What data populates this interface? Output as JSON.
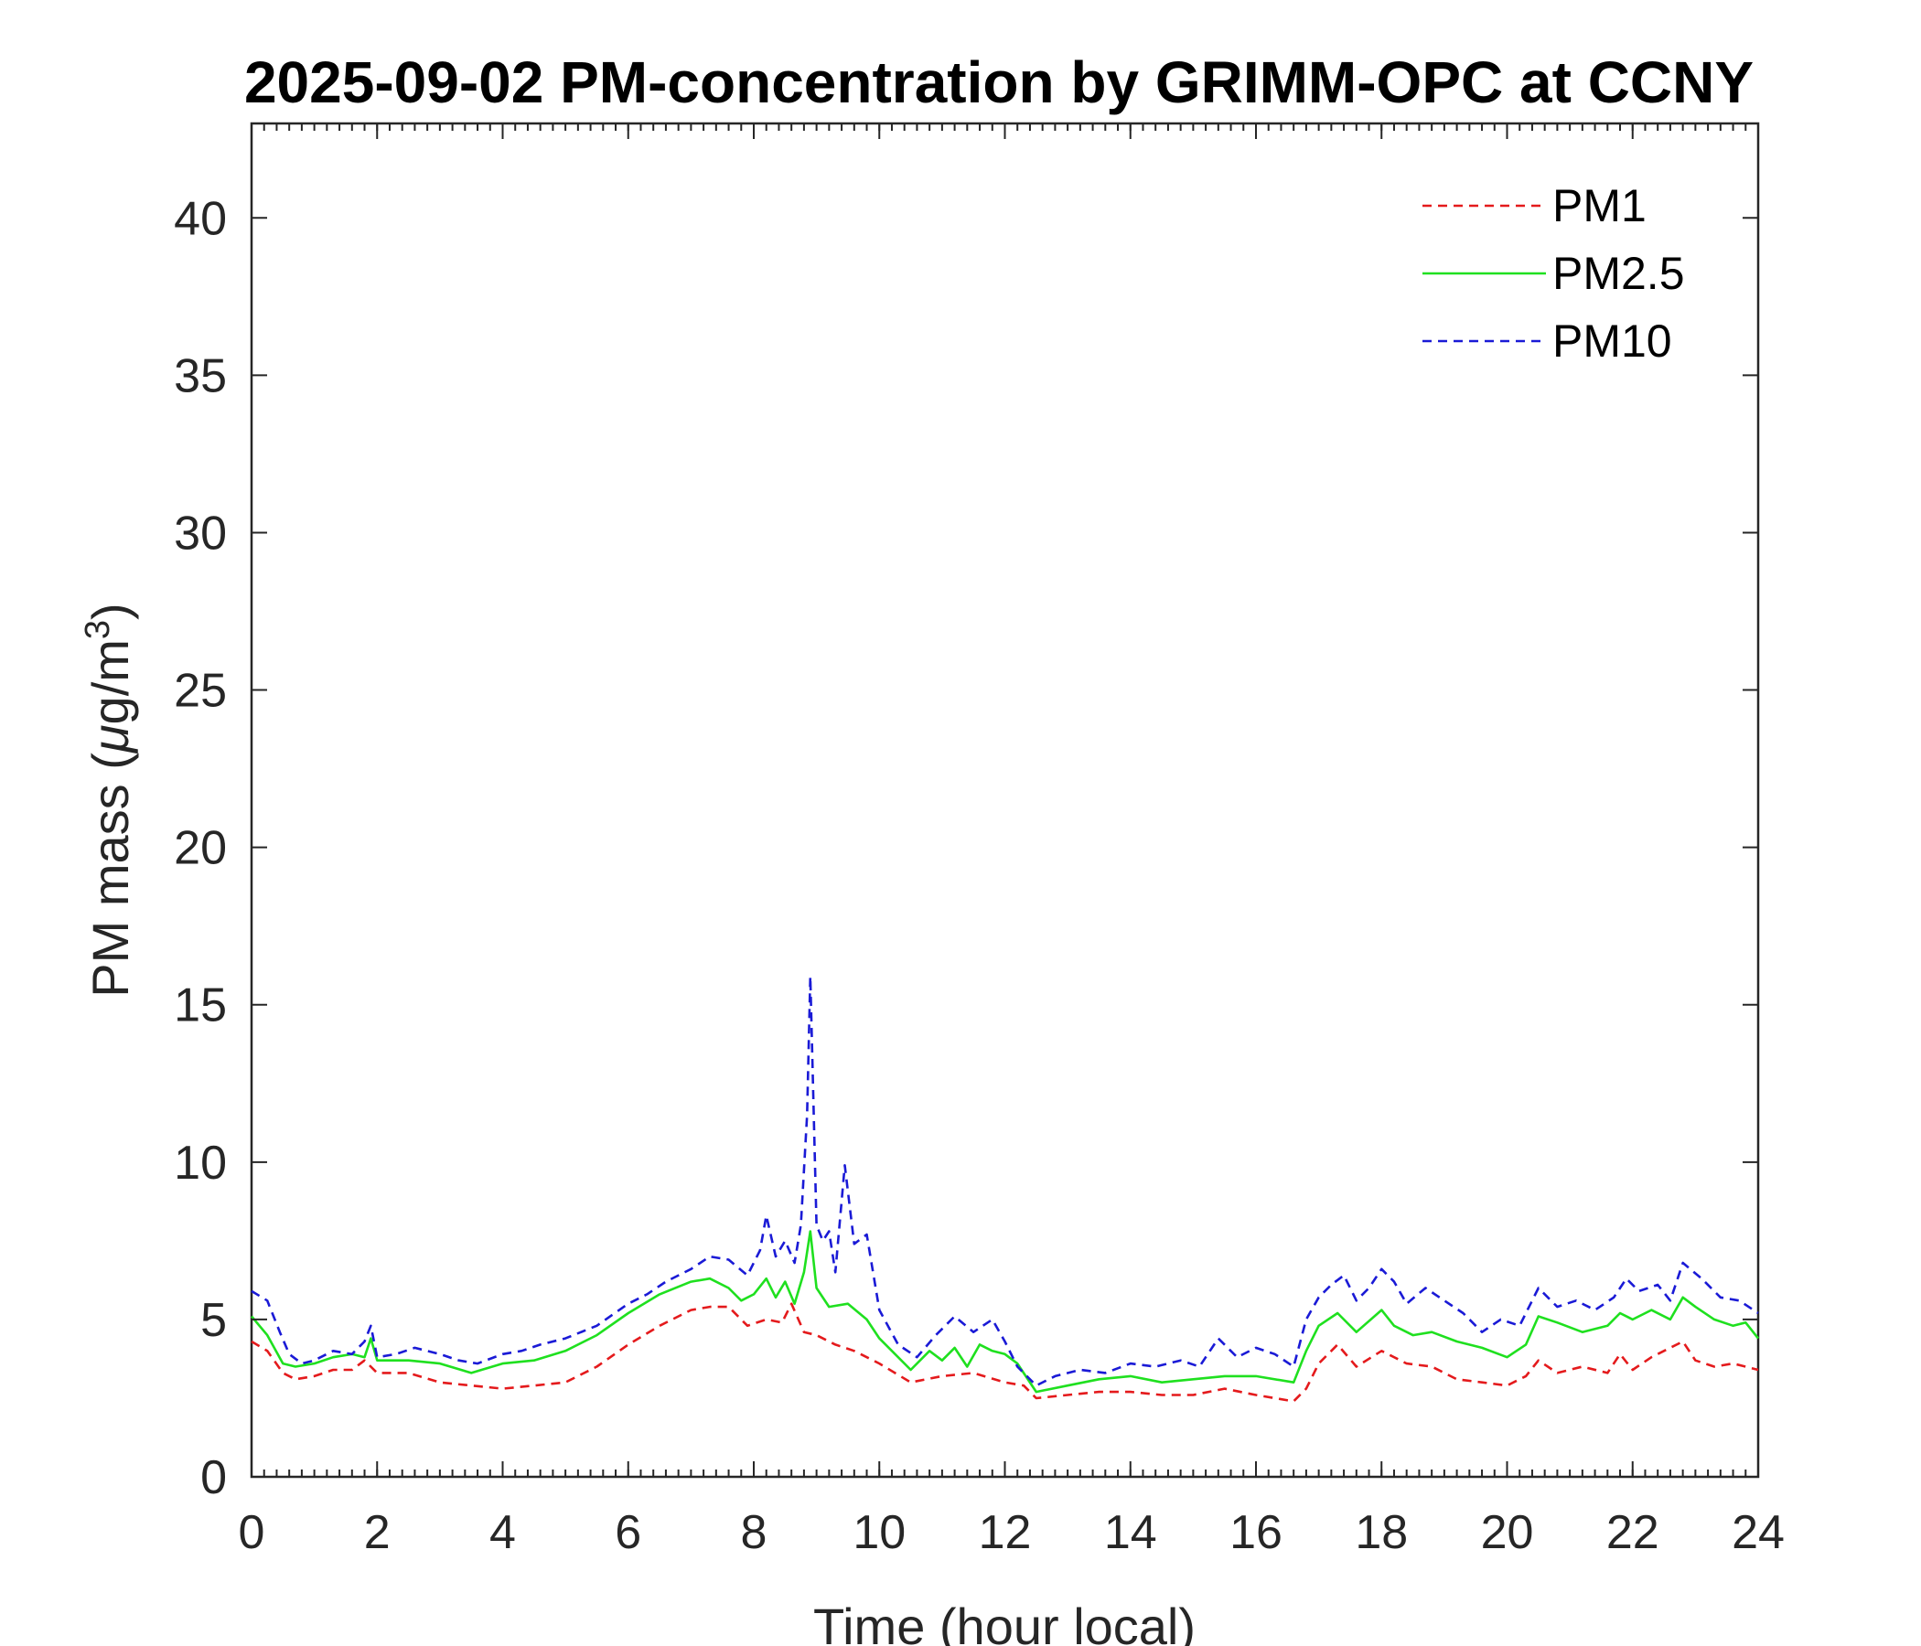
{
  "chart_data": {
    "type": "line",
    "title": "2025-09-02 PM-concentration by GRIMM-OPC at CCNY",
    "xlabel": "Time (hour local)",
    "ylabel_main": "PM mass (",
    "ylabel_mu": "μ",
    "ylabel_unit": "g/m",
    "ylabel_sup": "3",
    "ylabel_close": ")",
    "xlim": [
      0,
      24
    ],
    "ylim": [
      0,
      43
    ],
    "x_ticks": [
      0,
      2,
      4,
      6,
      8,
      10,
      12,
      14,
      16,
      18,
      20,
      22,
      24
    ],
    "y_ticks": [
      0,
      5,
      10,
      15,
      20,
      25,
      30,
      35,
      40
    ],
    "x_tick_labels": [
      "0",
      "2",
      "4",
      "6",
      "8",
      "10",
      "12",
      "14",
      "16",
      "18",
      "20",
      "22",
      "24"
    ],
    "y_tick_labels": [
      "0",
      "5",
      "10",
      "15",
      "20",
      "25",
      "30",
      "35",
      "40"
    ],
    "x_minor_step": 0.2,
    "grid": false,
    "legend_position": "top-right",
    "series": [
      {
        "name": "PM1",
        "color": "#e41a1c",
        "dash": "dashed",
        "x": [
          0,
          0.25,
          0.5,
          0.7,
          1,
          1.3,
          1.6,
          1.8,
          2,
          2.5,
          3,
          3.5,
          4,
          4.5,
          5,
          5.5,
          6,
          6.5,
          7,
          7.3,
          7.6,
          7.9,
          8.2,
          8.45,
          8.6,
          8.8,
          9,
          9.3,
          9.6,
          10,
          10.5,
          11,
          11.5,
          12,
          12.3,
          12.5,
          13,
          13.5,
          14,
          14.5,
          15,
          15.5,
          16,
          16.6,
          16.8,
          17,
          17.3,
          17.6,
          18,
          18.4,
          18.8,
          19.2,
          19.6,
          20,
          20.3,
          20.5,
          20.8,
          21.2,
          21.6,
          21.8,
          22,
          22.3,
          22.6,
          22.8,
          23,
          23.3,
          23.6,
          24
        ],
        "y": [
          4.3,
          4.0,
          3.3,
          3.1,
          3.2,
          3.4,
          3.4,
          3.7,
          3.3,
          3.3,
          3.0,
          2.9,
          2.8,
          2.9,
          3.0,
          3.5,
          4.2,
          4.8,
          5.3,
          5.4,
          5.4,
          4.8,
          5.0,
          4.9,
          5.5,
          4.6,
          4.5,
          4.2,
          4.0,
          3.6,
          3.0,
          3.2,
          3.3,
          3.0,
          2.9,
          2.5,
          2.6,
          2.7,
          2.7,
          2.6,
          2.6,
          2.8,
          2.6,
          2.4,
          2.8,
          3.6,
          4.2,
          3.5,
          4.0,
          3.6,
          3.5,
          3.1,
          3.0,
          2.9,
          3.2,
          3.7,
          3.3,
          3.5,
          3.3,
          3.9,
          3.4,
          3.8,
          4.1,
          4.3,
          3.7,
          3.5,
          3.6,
          3.4
        ]
      },
      {
        "name": "PM2.5",
        "color": "#1fe01f",
        "dash": "solid",
        "x": [
          0,
          0.25,
          0.5,
          0.7,
          1,
          1.3,
          1.6,
          1.8,
          1.9,
          2,
          2.5,
          3,
          3.5,
          4,
          4.5,
          5,
          5.5,
          6,
          6.5,
          7,
          7.3,
          7.6,
          7.8,
          8.0,
          8.2,
          8.35,
          8.5,
          8.65,
          8.8,
          8.9,
          9.0,
          9.2,
          9.5,
          9.8,
          10,
          10.5,
          10.8,
          11.0,
          11.2,
          11.4,
          11.6,
          11.8,
          12,
          12.2,
          12.5,
          13,
          13.5,
          14,
          14.5,
          15,
          15.5,
          16,
          16.6,
          16.8,
          17,
          17.3,
          17.6,
          18,
          18.2,
          18.5,
          18.8,
          19.2,
          19.6,
          20,
          20.3,
          20.5,
          20.8,
          21.2,
          21.6,
          21.8,
          22,
          22.3,
          22.6,
          22.8,
          23,
          23.3,
          23.6,
          23.8,
          24
        ],
        "y": [
          5.1,
          4.5,
          3.6,
          3.5,
          3.6,
          3.8,
          3.9,
          3.8,
          4.4,
          3.7,
          3.7,
          3.6,
          3.3,
          3.6,
          3.7,
          4.0,
          4.5,
          5.2,
          5.8,
          6.2,
          6.3,
          6.0,
          5.6,
          5.8,
          6.3,
          5.7,
          6.2,
          5.5,
          6.5,
          7.8,
          6.0,
          5.4,
          5.5,
          5.0,
          4.4,
          3.4,
          4.0,
          3.7,
          4.1,
          3.5,
          4.2,
          4.0,
          3.9,
          3.6,
          2.7,
          2.9,
          3.1,
          3.2,
          3.0,
          3.1,
          3.2,
          3.2,
          3.0,
          4.0,
          4.8,
          5.2,
          4.6,
          5.3,
          4.8,
          4.5,
          4.6,
          4.3,
          4.1,
          3.8,
          4.2,
          5.1,
          4.9,
          4.6,
          4.8,
          5.2,
          5.0,
          5.3,
          5.0,
          5.7,
          5.4,
          5.0,
          4.8,
          4.9,
          4.4
        ]
      },
      {
        "name": "PM10",
        "color": "#1a1ad6",
        "dash": "dashed",
        "x": [
          0,
          0.25,
          0.45,
          0.6,
          0.8,
          1,
          1.3,
          1.6,
          1.8,
          1.9,
          2,
          2.3,
          2.6,
          3,
          3.3,
          3.6,
          4,
          4.3,
          4.6,
          5,
          5.5,
          6,
          6.3,
          6.6,
          7,
          7.3,
          7.6,
          7.9,
          8.1,
          8.2,
          8.35,
          8.5,
          8.65,
          8.75,
          8.85,
          8.9,
          9.0,
          9.1,
          9.2,
          9.3,
          9.45,
          9.6,
          9.8,
          10,
          10.3,
          10.6,
          10.9,
          11.2,
          11.5,
          11.8,
          12,
          12.2,
          12.5,
          12.8,
          13.2,
          13.6,
          14,
          14.4,
          14.8,
          15.1,
          15.4,
          15.7,
          16,
          16.3,
          16.6,
          16.8,
          17,
          17.2,
          17.4,
          17.6,
          17.8,
          18,
          18.2,
          18.4,
          18.7,
          19,
          19.3,
          19.6,
          19.9,
          20.2,
          20.5,
          20.8,
          21.1,
          21.4,
          21.7,
          21.9,
          22.1,
          22.4,
          22.6,
          22.8,
          23.1,
          23.4,
          23.7,
          24
        ],
        "y": [
          5.9,
          5.6,
          4.6,
          3.9,
          3.6,
          3.7,
          4.0,
          3.9,
          4.3,
          4.8,
          3.8,
          3.9,
          4.1,
          3.9,
          3.7,
          3.6,
          3.9,
          4.0,
          4.2,
          4.4,
          4.8,
          5.5,
          5.8,
          6.2,
          6.6,
          7.0,
          6.9,
          6.4,
          7.2,
          8.3,
          7.0,
          7.5,
          6.8,
          8.0,
          11.5,
          15.9,
          8.0,
          7.5,
          7.8,
          6.5,
          9.9,
          7.4,
          7.7,
          5.3,
          4.2,
          3.8,
          4.5,
          5.1,
          4.6,
          5.0,
          4.3,
          3.5,
          2.9,
          3.2,
          3.4,
          3.3,
          3.6,
          3.5,
          3.7,
          3.5,
          4.4,
          3.8,
          4.1,
          3.9,
          3.5,
          5.0,
          5.7,
          6.1,
          6.4,
          5.6,
          6.0,
          6.6,
          6.2,
          5.5,
          6.0,
          5.6,
          5.2,
          4.6,
          5.0,
          4.8,
          6.0,
          5.4,
          5.6,
          5.3,
          5.7,
          6.3,
          5.9,
          6.1,
          5.6,
          6.8,
          6.3,
          5.7,
          5.6,
          5.2
        ]
      }
    ]
  }
}
